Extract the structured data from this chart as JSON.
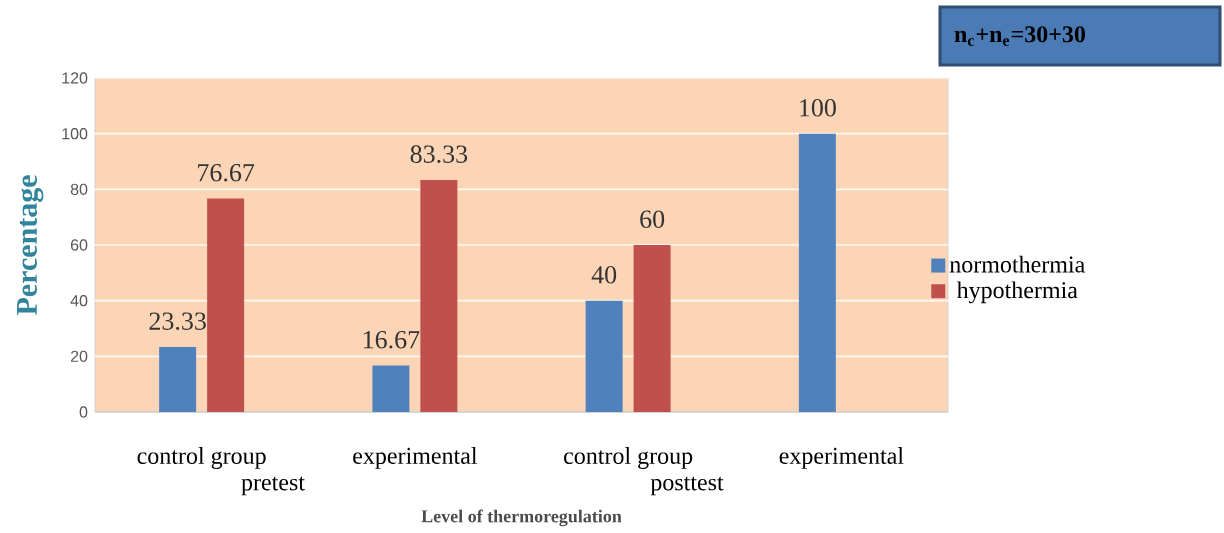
{
  "chart_data": {
    "type": "bar",
    "categories": [
      "control group",
      "experimental",
      "control group",
      "experimental"
    ],
    "series": [
      {
        "name": "normothermia",
        "color": "#4f81bd",
        "values": [
          23.33,
          16.67,
          40,
          100
        ],
        "value_labels": [
          "23.33",
          "16.67",
          "40",
          "100"
        ]
      },
      {
        "name": "hypothermia",
        "color": "#c0504d",
        "values": [
          76.67,
          83.33,
          60,
          0
        ],
        "value_labels": [
          "76.67",
          "83.33",
          "60",
          null
        ]
      }
    ],
    "ylim": [
      0,
      120
    ],
    "yticks": [
      0,
      20,
      40,
      60,
      80,
      100,
      120
    ],
    "grid": "y",
    "legend": "right",
    "xlabel": "Level of thermoregulation",
    "ylabel": "Percentage",
    "annotations": [
      "n$_{c}$+n$_{e}$=30+30",
      "pretest",
      "posttest"
    ]
  }
}
